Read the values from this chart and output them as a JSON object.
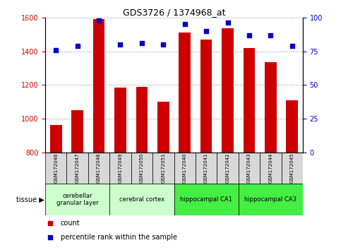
{
  "title": "GDS3726 / 1374968_at",
  "samples": [
    "GSM172046",
    "GSM172047",
    "GSM172048",
    "GSM172049",
    "GSM172050",
    "GSM172051",
    "GSM172040",
    "GSM172041",
    "GSM172042",
    "GSM172043",
    "GSM172044",
    "GSM172045"
  ],
  "counts": [
    960,
    1050,
    1590,
    1185,
    1190,
    1100,
    1510,
    1470,
    1535,
    1420,
    1335,
    1110
  ],
  "percentiles": [
    76,
    79,
    98,
    80,
    81,
    80,
    95,
    90,
    96,
    87,
    87,
    79
  ],
  "ylim_left": [
    800,
    1600
  ],
  "ylim_right": [
    0,
    100
  ],
  "yticks_left": [
    800,
    1000,
    1200,
    1400,
    1600
  ],
  "yticks_right": [
    0,
    25,
    50,
    75,
    100
  ],
  "bar_color": "#cc0000",
  "dot_color": "#0000cc",
  "bar_width": 0.55,
  "tissue_groups": [
    {
      "label": "cerebellar\ngranular layer",
      "start": 0,
      "end": 3,
      "color": "#ccffcc"
    },
    {
      "label": "cerebral cortex",
      "start": 3,
      "end": 6,
      "color": "#ccffcc"
    },
    {
      "label": "hippocampal CA1",
      "start": 6,
      "end": 9,
      "color": "#44ee44"
    },
    {
      "label": "hippocampal CA3",
      "start": 9,
      "end": 12,
      "color": "#44ee44"
    }
  ],
  "tissue_label": "tissue",
  "legend_count_label": "count",
  "legend_pct_label": "percentile rank within the sample",
  "background_color": "#ffffff",
  "grid_color": "#888888",
  "tick_label_color_left": "#cc0000",
  "tick_label_color_right": "#0000cc",
  "sample_box_color": "#d8d8d8"
}
